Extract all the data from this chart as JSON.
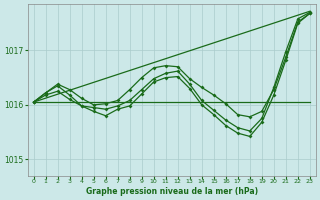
{
  "title": "Graphe pression niveau de la mer (hPa)",
  "bg_color": "#cce8e8",
  "grid_color": "#aacccc",
  "line_color": "#1a6b1a",
  "ylim": [
    1014.7,
    1017.85
  ],
  "yticks": [
    1015,
    1016,
    1017
  ],
  "xlim": [
    -0.5,
    23.5
  ],
  "xticks": [
    0,
    1,
    2,
    3,
    4,
    5,
    6,
    7,
    8,
    9,
    10,
    11,
    12,
    13,
    14,
    15,
    16,
    17,
    18,
    19,
    20,
    21,
    22,
    23
  ],
  "straight_line": [
    [
      0,
      1016.05
    ],
    [
      23,
      1017.72
    ]
  ],
  "series1": [
    1016.05,
    1016.22,
    1016.38,
    1016.28,
    1016.12,
    1016.0,
    1016.02,
    1016.08,
    1016.28,
    1016.5,
    1016.68,
    1016.72,
    1016.7,
    1016.48,
    1016.32,
    1016.18,
    1016.02,
    1015.82,
    1015.78,
    1015.88,
    1016.28,
    1016.88,
    1017.52,
    1017.68
  ],
  "series2": [
    1016.05,
    1016.22,
    1016.35,
    1016.18,
    1015.98,
    1015.95,
    1015.92,
    1015.98,
    1016.08,
    1016.28,
    1016.48,
    1016.58,
    1016.62,
    1016.38,
    1016.08,
    1015.9,
    1015.72,
    1015.58,
    1015.52,
    1015.75,
    1016.32,
    1016.98,
    1017.58,
    1017.7
  ],
  "series3_nomarker": [
    [
      0,
      1016.05
    ],
    [
      23,
      1016.05
    ]
  ],
  "has_lower_line": true,
  "lower_line": [
    1016.05,
    1016.18,
    1016.25,
    1016.1,
    1015.98,
    1015.88,
    1015.8,
    1015.92,
    1015.98,
    1016.2,
    1016.42,
    1016.5,
    1016.52,
    1016.3,
    1016.0,
    1015.82,
    1015.62,
    1015.48,
    1015.42,
    1015.68,
    1016.18,
    1016.82,
    1017.5,
    1017.68
  ]
}
